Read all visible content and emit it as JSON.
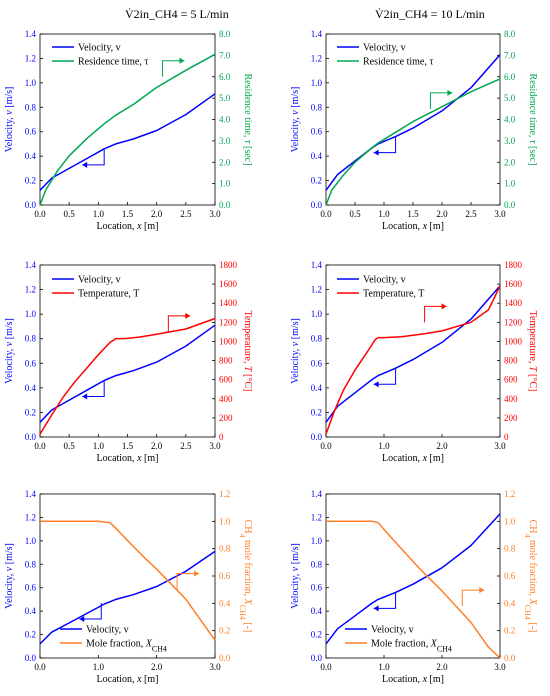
{
  "column_titles": [
    "V̇2in_CH4 = 5 L/min",
    "V̇2in_CH4 = 10 L/min"
  ],
  "colors": {
    "velocity": "#0000ff",
    "residence": "#00a651",
    "temperature": "#ff0000",
    "molefraction": "#ff7f27"
  },
  "chart_data": [
    {
      "id": "residence-5",
      "type": "line",
      "xlabel": "Location, x [m]",
      "ylabel_left": "Velocity, v [m/s]",
      "ylabel_right": "Residence time, τ [sec]",
      "xlim": [
        0,
        3
      ],
      "xticks": [
        "0.0",
        "0.5",
        "1.0",
        "1.5",
        "2.0",
        "2.5",
        "3.0"
      ],
      "ylim_left": [
        0,
        1.4
      ],
      "yticks_left": [
        "0.0",
        "0.2",
        "0.4",
        "0.6",
        "0.8",
        "1.0",
        "1.2",
        "1.4"
      ],
      "ylim_right": [
        0,
        8
      ],
      "yticks_right": [
        "0.0",
        "1.0",
        "2.0",
        "3.0",
        "4.0",
        "5.0",
        "6.0",
        "7.0",
        "8.0"
      ],
      "series": [
        {
          "name": "Velocity, v",
          "axis": "left",
          "color": "#0000ff",
          "x": [
            0,
            0.2,
            0.5,
            0.8,
            1.1,
            1.3,
            1.6,
            2.0,
            2.5,
            3.0
          ],
          "y": [
            0.12,
            0.22,
            0.3,
            0.38,
            0.46,
            0.5,
            0.54,
            0.61,
            0.74,
            0.91
          ]
        },
        {
          "name": "Residence time, τ",
          "axis": "right",
          "color": "#00a651",
          "x": [
            0,
            0.1,
            0.3,
            0.5,
            0.8,
            1.1,
            1.3,
            1.6,
            2.0,
            2.5,
            3.0
          ],
          "y": [
            0,
            0.7,
            1.6,
            2.3,
            3.1,
            3.8,
            4.2,
            4.7,
            5.5,
            6.3,
            7.05
          ]
        }
      ],
      "arrows": [
        {
          "at_x": 1.1,
          "at_y": 0.46,
          "axis": "left",
          "dir": "left"
        },
        {
          "at_x": 2.1,
          "at_y": 6.0,
          "axis": "right",
          "dir": "right"
        }
      ]
    },
    {
      "id": "residence-10",
      "type": "line",
      "xlabel": "Location, x [m]",
      "ylabel_left": "Velocity, v [m/s]",
      "ylabel_right": "Residence time, τ [sec]",
      "xlim": [
        0,
        3
      ],
      "xticks": [
        "0.0",
        "0.5",
        "1.0",
        "1.5",
        "2.0",
        "2.5",
        "3.0"
      ],
      "ylim_left": [
        0,
        1.4
      ],
      "yticks_left": [
        "0.0",
        "0.2",
        "0.4",
        "0.6",
        "0.8",
        "1.0",
        "1.2",
        "1.4"
      ],
      "ylim_right": [
        0,
        8
      ],
      "yticks_right": [
        "0.0",
        "1.0",
        "2.0",
        "3.0",
        "4.0",
        "5.0",
        "6.0",
        "7.0",
        "8.0"
      ],
      "series": [
        {
          "name": "Velocity, v",
          "axis": "left",
          "color": "#0000ff",
          "x": [
            0,
            0.2,
            0.5,
            0.8,
            0.9,
            1.2,
            1.5,
            2.0,
            2.5,
            3.0
          ],
          "y": [
            0.12,
            0.25,
            0.36,
            0.47,
            0.5,
            0.56,
            0.63,
            0.77,
            0.96,
            1.23
          ]
        },
        {
          "name": "Residence time, τ",
          "axis": "right",
          "color": "#00a651",
          "x": [
            0,
            0.1,
            0.3,
            0.5,
            0.8,
            0.9,
            1.2,
            1.5,
            2.0,
            2.5,
            3.0
          ],
          "y": [
            0,
            0.7,
            1.4,
            2.0,
            2.7,
            2.9,
            3.4,
            3.9,
            4.6,
            5.3,
            5.9
          ]
        }
      ],
      "arrows": [
        {
          "at_x": 1.2,
          "at_y": 0.56,
          "axis": "left",
          "dir": "left"
        },
        {
          "at_x": 1.8,
          "at_y": 4.5,
          "axis": "right",
          "dir": "right"
        }
      ]
    },
    {
      "id": "temperature-5",
      "type": "line",
      "xlabel": "Location, x [m]",
      "ylabel_left": "Velocity, v [m/s]",
      "ylabel_right": "Temperature, T [°C]",
      "xlim": [
        0,
        3
      ],
      "xticks": [
        "0.0",
        "0.5",
        "1.0",
        "1.5",
        "2.0",
        "2.5",
        "3.0"
      ],
      "ylim_left": [
        0,
        1.4
      ],
      "yticks_left": [
        "0.0",
        "0.2",
        "0.4",
        "0.6",
        "0.8",
        "1.0",
        "1.2",
        "1.4"
      ],
      "ylim_right": [
        0,
        1800
      ],
      "yticks_right": [
        "0",
        "200",
        "400",
        "600",
        "800",
        "1000",
        "1200",
        "1400",
        "1600",
        "1800"
      ],
      "series": [
        {
          "name": "Velocity, v",
          "axis": "left",
          "color": "#0000ff",
          "x": [
            0,
            0.2,
            0.5,
            0.8,
            1.1,
            1.3,
            1.6,
            2.0,
            2.5,
            3.0
          ],
          "y": [
            0.12,
            0.22,
            0.3,
            0.38,
            0.46,
            0.5,
            0.54,
            0.61,
            0.74,
            0.91
          ]
        },
        {
          "name": "Temperature, T",
          "axis": "right",
          "color": "#ff0000",
          "x": [
            0,
            0.2,
            0.4,
            0.6,
            0.8,
            1.0,
            1.2,
            1.3,
            1.45,
            1.7,
            2.0,
            2.5,
            3.0
          ],
          "y": [
            30,
            230,
            420,
            580,
            720,
            860,
            990,
            1030,
            1030,
            1045,
            1075,
            1130,
            1240
          ]
        }
      ],
      "arrows": [
        {
          "at_x": 1.1,
          "at_y": 0.46,
          "axis": "left",
          "dir": "left"
        },
        {
          "at_x": 2.2,
          "at_y": 1100,
          "axis": "right",
          "dir": "right"
        }
      ]
    },
    {
      "id": "temperature-10",
      "type": "line",
      "xlabel": "Location, x [m]",
      "ylabel_left": "Velocity, v [m/s]",
      "ylabel_right": "Temperature, T [°C]",
      "xlim": [
        0,
        3
      ],
      "xticks": [
        "0.0",
        "1.0",
        "2.0",
        "3.0"
      ],
      "ylim_left": [
        0,
        1.4
      ],
      "yticks_left": [
        "0.0",
        "0.2",
        "0.4",
        "0.6",
        "0.8",
        "1.0",
        "1.2",
        "1.4"
      ],
      "ylim_right": [
        0,
        1800
      ],
      "yticks_right": [
        "0",
        "200",
        "400",
        "600",
        "800",
        "1000",
        "1200",
        "1400",
        "1600",
        "1800"
      ],
      "series": [
        {
          "name": "Velocity, v",
          "axis": "left",
          "color": "#0000ff",
          "x": [
            0,
            0.2,
            0.5,
            0.8,
            0.9,
            1.2,
            1.5,
            2.0,
            2.5,
            3.0
          ],
          "y": [
            0.12,
            0.25,
            0.36,
            0.47,
            0.5,
            0.56,
            0.63,
            0.77,
            0.96,
            1.23
          ]
        },
        {
          "name": "Temperature, T",
          "axis": "right",
          "color": "#ff0000",
          "x": [
            0,
            0.15,
            0.3,
            0.5,
            0.7,
            0.85,
            0.9,
            1.0,
            1.3,
            1.7,
            2.0,
            2.5,
            2.8,
            3.0
          ],
          "y": [
            30,
            280,
            490,
            700,
            880,
            1020,
            1040,
            1040,
            1050,
            1080,
            1110,
            1200,
            1330,
            1580
          ]
        }
      ],
      "arrows": [
        {
          "at_x": 1.2,
          "at_y": 0.56,
          "axis": "left",
          "dir": "left"
        },
        {
          "at_x": 1.7,
          "at_y": 1200,
          "axis": "right",
          "dir": "right"
        }
      ]
    },
    {
      "id": "mole-5",
      "type": "line",
      "xlabel": "Location, x [m]",
      "ylabel_left": "Velocity, v [m/s]",
      "ylabel_right": "CH4 mole fraction, XCH4 [-]",
      "xlim": [
        0,
        3
      ],
      "xticks": [
        "0.0",
        "1.0",
        "2.0",
        "3.0"
      ],
      "ylim_left": [
        0,
        1.4
      ],
      "yticks_left": [
        "0.0",
        "0.2",
        "0.4",
        "0.6",
        "0.8",
        "1.0",
        "1.2",
        "1.4"
      ],
      "ylim_right": [
        0,
        1.2
      ],
      "yticks_right": [
        "0.0",
        "0.2",
        "0.4",
        "0.6",
        "0.8",
        "1.0",
        "1.2"
      ],
      "series": [
        {
          "name": "Velocity, v",
          "axis": "left",
          "color": "#0000ff",
          "x": [
            0,
            0.2,
            0.5,
            0.8,
            1.1,
            1.3,
            1.6,
            2.0,
            2.5,
            3.0
          ],
          "y": [
            0.12,
            0.22,
            0.3,
            0.38,
            0.46,
            0.5,
            0.54,
            0.61,
            0.74,
            0.91
          ]
        },
        {
          "name": "Mole fraction, XCH4",
          "axis": "right",
          "color": "#ff7f27",
          "x": [
            0,
            0.5,
            1.0,
            1.2,
            1.3,
            1.5,
            1.8,
            2.0,
            2.5,
            3.0
          ],
          "y": [
            1.0,
            1.0,
            1.0,
            0.99,
            0.95,
            0.86,
            0.73,
            0.65,
            0.43,
            0.13
          ]
        }
      ],
      "arrows": [
        {
          "at_x": 1.05,
          "at_y": 0.47,
          "axis": "left",
          "dir": "left"
        },
        {
          "at_x": 2.35,
          "at_y": 0.5,
          "axis": "right",
          "dir": "right"
        }
      ]
    },
    {
      "id": "mole-10",
      "type": "line",
      "xlabel": "Location, x [m]",
      "ylabel_left": "Velocity, v [m/s]",
      "ylabel_right": "CH4 mole fraction, XCH4 [-]",
      "xlim": [
        0,
        3
      ],
      "xticks": [
        "0.0",
        "1.0",
        "2.0",
        "3.0"
      ],
      "ylim_left": [
        0,
        1.4
      ],
      "yticks_left": [
        "0.0",
        "0.2",
        "0.4",
        "0.6",
        "0.8",
        "1.0",
        "1.2",
        "1.4"
      ],
      "ylim_right": [
        0,
        1.2
      ],
      "yticks_right": [
        "0.0",
        "0.2",
        "0.4",
        "0.6",
        "0.8",
        "1.0",
        "1.2"
      ],
      "series": [
        {
          "name": "Velocity, v",
          "axis": "left",
          "color": "#0000ff",
          "x": [
            0,
            0.2,
            0.5,
            0.8,
            0.9,
            1.2,
            1.5,
            2.0,
            2.5,
            3.0
          ],
          "y": [
            0.12,
            0.25,
            0.36,
            0.47,
            0.5,
            0.56,
            0.63,
            0.77,
            0.96,
            1.23
          ]
        },
        {
          "name": "Mole fraction, XCH4",
          "axis": "right",
          "color": "#ff7f27",
          "x": [
            0,
            0.5,
            0.8,
            0.9,
            1.0,
            1.3,
            1.6,
            2.0,
            2.5,
            2.8,
            3.0
          ],
          "y": [
            1.0,
            1.0,
            1.0,
            0.99,
            0.94,
            0.8,
            0.66,
            0.49,
            0.26,
            0.08,
            0.0
          ]
        }
      ],
      "arrows": [
        {
          "at_x": 1.2,
          "at_y": 0.56,
          "axis": "left",
          "dir": "left"
        },
        {
          "at_x": 2.35,
          "at_y": 0.38,
          "axis": "right",
          "dir": "right"
        }
      ]
    }
  ]
}
